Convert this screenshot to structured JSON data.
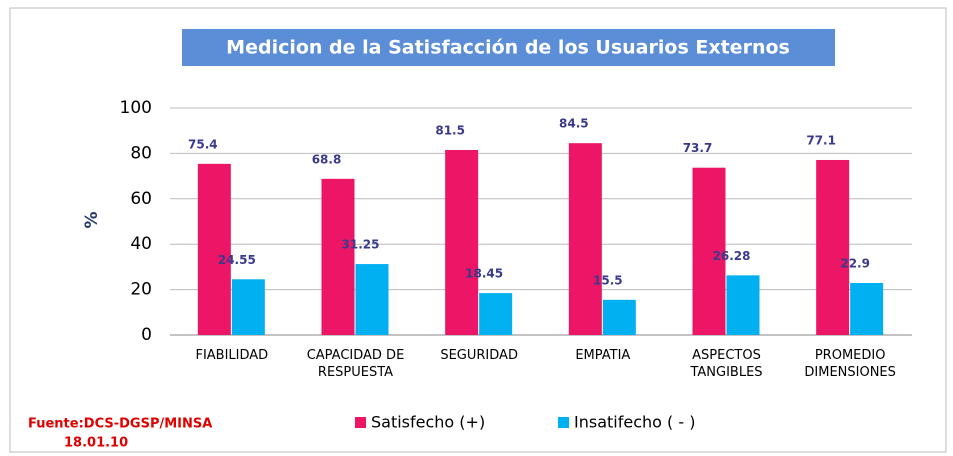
{
  "chart_data": {
    "type": "bar",
    "title": "Medicion de la  Satisfacción  de los Usuarios Externos",
    "y_label": "%",
    "categories": [
      "FIABILIDAD",
      "CAPACIDAD DE RESPUESTA",
      "SEGURIDAD",
      "EMPATIA",
      "ASPECTOS TANGIBLES",
      "PROMEDIO DIMENSIONES"
    ],
    "series": [
      {
        "name": "Satisfecho (+)",
        "color": "#ec1566",
        "values": [
          75.4,
          68.8,
          81.5,
          84.5,
          73.7,
          77.1
        ]
      },
      {
        "name": "Insatifecho ( - )",
        "color": "#00b0f0",
        "values": [
          24.55,
          31.25,
          18.45,
          15.5,
          26.28,
          22.9
        ]
      }
    ],
    "ylim": [
      0,
      100
    ],
    "yticks": [
      0,
      20,
      40,
      60,
      80,
      100
    ],
    "grid": true,
    "legend": "bottom",
    "source": [
      "Fuente:DCS-DGSP/MINSA",
      "18.01.10"
    ]
  }
}
